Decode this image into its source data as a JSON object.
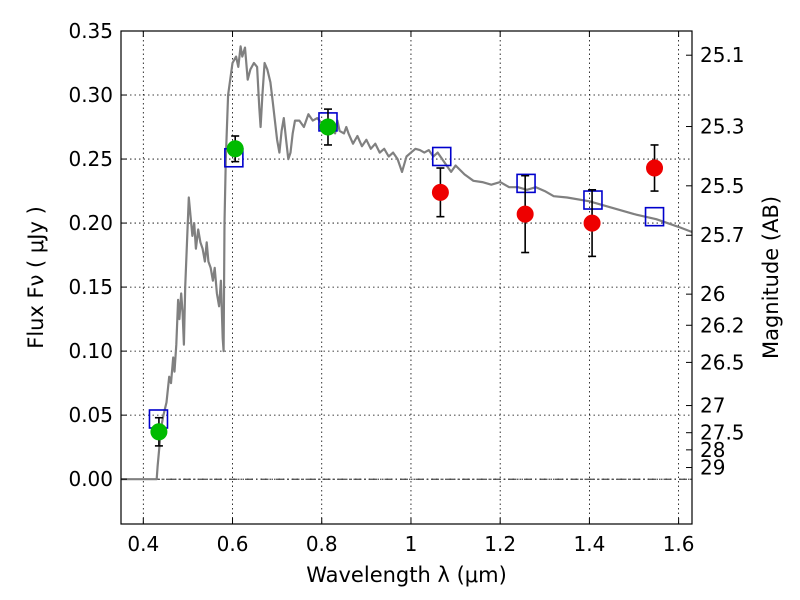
{
  "chart_data": {
    "type": "scatter",
    "xlabel": "Wavelength  λ (μm)",
    "ylabel": "Flux  Fν  ( μJy )",
    "ylabel_right": "Magnitude (AB)",
    "xlim": [
      0.35,
      1.63
    ],
    "ylim": [
      -0.035,
      0.35
    ],
    "grid": true,
    "x_ticks": [
      0.4,
      0.6,
      0.8,
      1.0,
      1.2,
      1.4,
      1.6
    ],
    "x_tick_labels": [
      "0.4",
      "0.6",
      "0.8",
      "1",
      "1.2",
      "1.4",
      "1.6"
    ],
    "y_ticks": [
      0.0,
      0.05,
      0.1,
      0.15,
      0.2,
      0.25,
      0.3,
      0.35
    ],
    "y_tick_labels": [
      "0.00",
      "0.05",
      "0.10",
      "0.15",
      "0.20",
      "0.25",
      "0.30",
      "0.35"
    ],
    "mag_ticks": [
      {
        "label": "25.1",
        "flux": 0.3311
      },
      {
        "label": "25.3",
        "flux": 0.2754
      },
      {
        "label": "25.5",
        "flux": 0.2291
      },
      {
        "label": "25.7",
        "flux": 0.1905
      },
      {
        "label": "26",
        "flux": 0.1445
      },
      {
        "label": "26.2",
        "flux": 0.1202
      },
      {
        "label": "26.5",
        "flux": 0.0912
      },
      {
        "label": "27",
        "flux": 0.0575
      },
      {
        "label": "27.5",
        "flux": 0.0363
      },
      {
        "label": "28",
        "flux": 0.0229
      },
      {
        "label": "29",
        "flux": 0.0091
      }
    ],
    "series": [
      {
        "kind": "line",
        "color": "#808080",
        "points": [
          [
            0.35,
            0.0
          ],
          [
            0.43,
            0.0
          ],
          [
            0.432,
            0.01
          ],
          [
            0.44,
            0.04
          ],
          [
            0.445,
            0.05
          ],
          [
            0.452,
            0.06
          ],
          [
            0.458,
            0.08
          ],
          [
            0.462,
            0.075
          ],
          [
            0.467,
            0.095
          ],
          [
            0.47,
            0.084
          ],
          [
            0.474,
            0.105
          ],
          [
            0.478,
            0.14
          ],
          [
            0.481,
            0.125
          ],
          [
            0.485,
            0.145
          ],
          [
            0.488,
            0.13
          ],
          [
            0.491,
            0.105
          ],
          [
            0.494,
            0.15
          ],
          [
            0.498,
            0.185
          ],
          [
            0.502,
            0.22
          ],
          [
            0.506,
            0.205
          ],
          [
            0.51,
            0.19
          ],
          [
            0.514,
            0.2
          ],
          [
            0.518,
            0.18
          ],
          [
            0.523,
            0.195
          ],
          [
            0.528,
            0.185
          ],
          [
            0.533,
            0.18
          ],
          [
            0.538,
            0.17
          ],
          [
            0.542,
            0.185
          ],
          [
            0.546,
            0.17
          ],
          [
            0.551,
            0.165
          ],
          [
            0.556,
            0.155
          ],
          [
            0.56,
            0.165
          ],
          [
            0.565,
            0.145
          ],
          [
            0.57,
            0.135
          ],
          [
            0.574,
            0.155
          ],
          [
            0.578,
            0.11
          ],
          [
            0.58,
            0.1
          ],
          [
            0.582,
            0.2
          ],
          [
            0.585,
            0.25
          ],
          [
            0.59,
            0.3
          ],
          [
            0.6,
            0.325
          ],
          [
            0.608,
            0.33
          ],
          [
            0.613,
            0.322
          ],
          [
            0.618,
            0.338
          ],
          [
            0.622,
            0.33
          ],
          [
            0.628,
            0.337
          ],
          [
            0.634,
            0.312
          ],
          [
            0.64,
            0.32
          ],
          [
            0.648,
            0.325
          ],
          [
            0.655,
            0.322
          ],
          [
            0.66,
            0.29
          ],
          [
            0.663,
            0.275
          ],
          [
            0.667,
            0.3
          ],
          [
            0.672,
            0.325
          ],
          [
            0.678,
            0.32
          ],
          [
            0.685,
            0.31
          ],
          [
            0.69,
            0.295
          ],
          [
            0.695,
            0.28
          ],
          [
            0.7,
            0.265
          ],
          [
            0.705,
            0.255
          ],
          [
            0.71,
            0.272
          ],
          [
            0.715,
            0.282
          ],
          [
            0.72,
            0.265
          ],
          [
            0.725,
            0.25
          ],
          [
            0.73,
            0.255
          ],
          [
            0.735,
            0.27
          ],
          [
            0.74,
            0.28
          ],
          [
            0.75,
            0.28
          ],
          [
            0.76,
            0.275
          ],
          [
            0.77,
            0.285
          ],
          [
            0.78,
            0.28
          ],
          [
            0.79,
            0.282
          ],
          [
            0.8,
            0.278
          ],
          [
            0.81,
            0.278
          ],
          [
            0.82,
            0.275
          ],
          [
            0.83,
            0.27
          ],
          [
            0.835,
            0.28
          ],
          [
            0.84,
            0.272
          ],
          [
            0.85,
            0.27
          ],
          [
            0.855,
            0.275
          ],
          [
            0.86,
            0.27
          ],
          [
            0.87,
            0.262
          ],
          [
            0.88,
            0.268
          ],
          [
            0.89,
            0.26
          ],
          [
            0.9,
            0.265
          ],
          [
            0.91,
            0.258
          ],
          [
            0.92,
            0.262
          ],
          [
            0.93,
            0.255
          ],
          [
            0.94,
            0.258
          ],
          [
            0.95,
            0.252
          ],
          [
            0.96,
            0.255
          ],
          [
            0.97,
            0.25
          ],
          [
            0.98,
            0.24
          ],
          [
            0.99,
            0.252
          ],
          [
            1.0,
            0.255
          ],
          [
            1.01,
            0.258
          ],
          [
            1.02,
            0.257
          ],
          [
            1.03,
            0.255
          ],
          [
            1.04,
            0.257
          ],
          [
            1.05,
            0.252
          ],
          [
            1.06,
            0.255
          ],
          [
            1.07,
            0.25
          ],
          [
            1.08,
            0.245
          ],
          [
            1.09,
            0.24
          ],
          [
            1.1,
            0.245
          ],
          [
            1.12,
            0.238
          ],
          [
            1.14,
            0.233
          ],
          [
            1.16,
            0.232
          ],
          [
            1.18,
            0.23
          ],
          [
            1.2,
            0.232
          ],
          [
            1.22,
            0.228
          ],
          [
            1.24,
            0.228
          ],
          [
            1.26,
            0.226
          ],
          [
            1.28,
            0.228
          ],
          [
            1.3,
            0.225
          ],
          [
            1.32,
            0.221
          ],
          [
            1.35,
            0.22
          ],
          [
            1.4,
            0.217
          ],
          [
            1.45,
            0.212
          ],
          [
            1.5,
            0.207
          ],
          [
            1.55,
            0.203
          ],
          [
            1.6,
            0.197
          ],
          [
            1.63,
            0.193
          ]
        ]
      },
      {
        "kind": "model",
        "color": "#0000cc",
        "points": [
          [
            0.434,
            0.047
          ],
          [
            0.603,
            0.251
          ],
          [
            0.814,
            0.279
          ],
          [
            1.069,
            0.252
          ],
          [
            1.258,
            0.231
          ],
          [
            1.408,
            0.218
          ],
          [
            1.546,
            0.205
          ]
        ]
      },
      {
        "kind": "observed",
        "color": "#00bb00",
        "points": [
          [
            0.435,
            0.037,
            0.011
          ],
          [
            0.606,
            0.258,
            0.01
          ],
          [
            0.814,
            0.275,
            0.014
          ]
        ]
      },
      {
        "kind": "observed",
        "color": "#ee0000",
        "points": [
          [
            1.066,
            0.224,
            0.019
          ],
          [
            1.256,
            0.207,
            0.03
          ],
          [
            1.406,
            0.2,
            0.026
          ],
          [
            1.546,
            0.243,
            0.018
          ]
        ]
      }
    ]
  }
}
